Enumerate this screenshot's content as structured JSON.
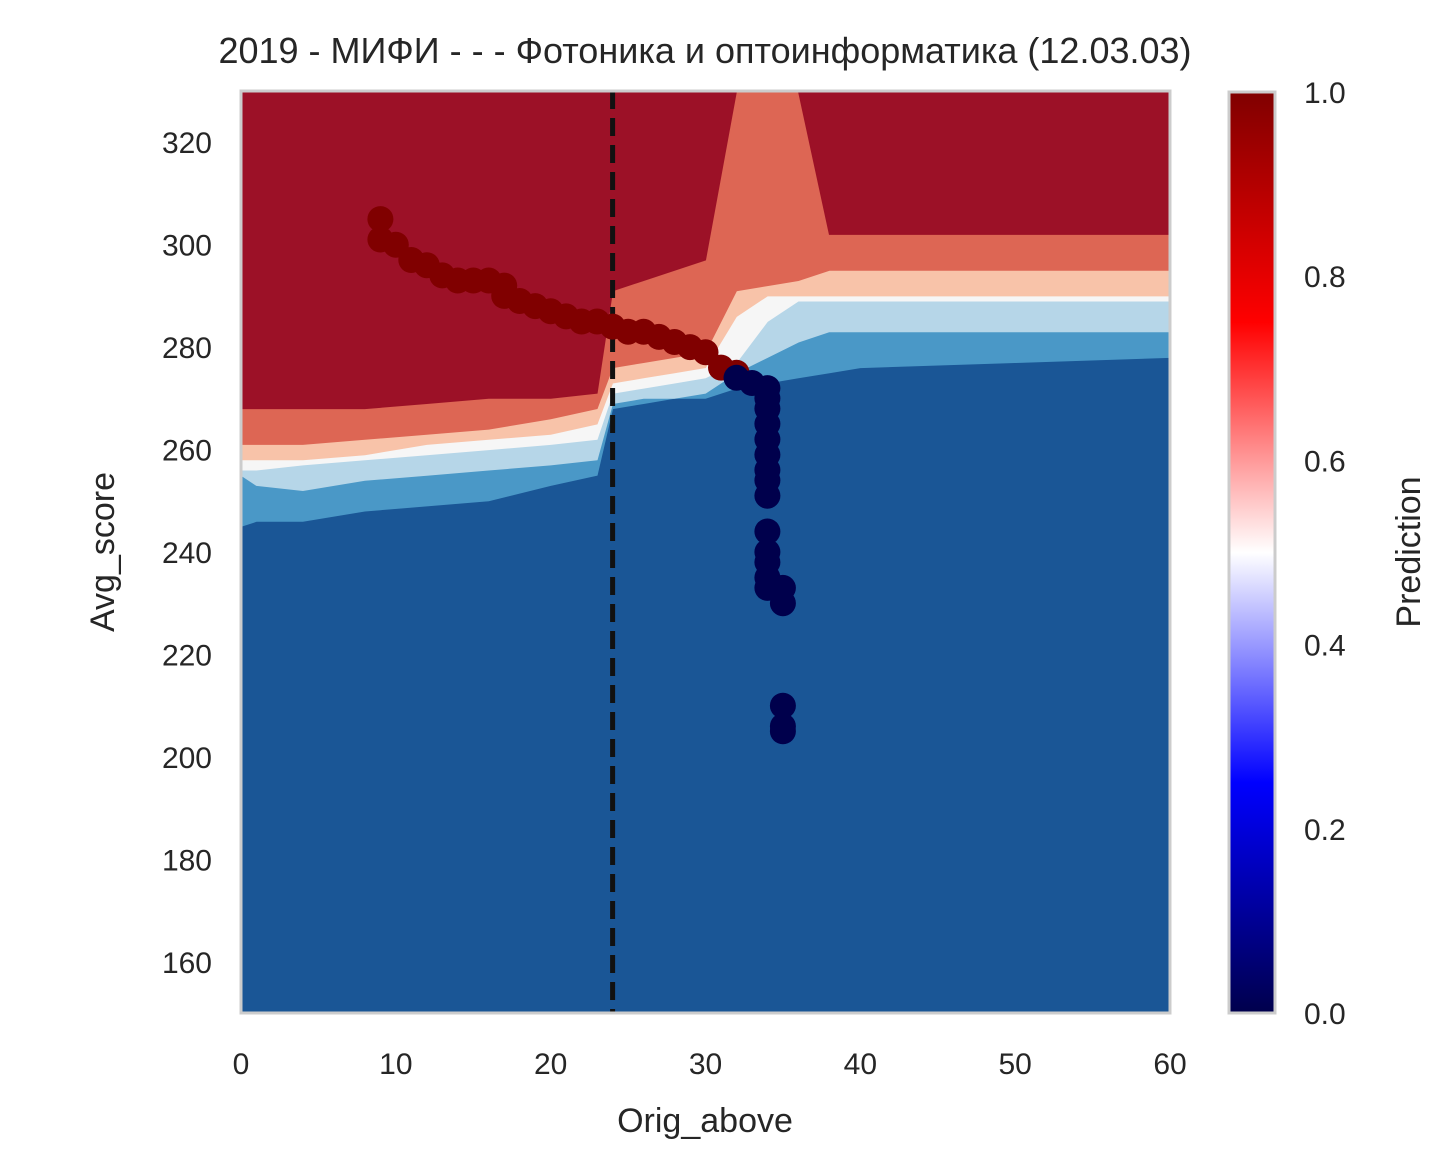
{
  "chart_data": {
    "type": "heatmap",
    "title": "2019 - МИФИ - - - Фотоника и оптоинформатика (12.03.03)",
    "xlabel": "Orig_above",
    "ylabel": "Avg_score",
    "xlim": [
      0,
      60
    ],
    "ylim": [
      150,
      330
    ],
    "xticks": [
      "0",
      "10",
      "20",
      "30",
      "40",
      "50",
      "60"
    ],
    "yticks": [
      "160",
      "180",
      "200",
      "220",
      "240",
      "260",
      "280",
      "300",
      "320"
    ],
    "grid": false,
    "threshold_line": {
      "orientation": "vertical",
      "x": 24,
      "style": "dashed",
      "color": "#111111"
    },
    "colorbar": {
      "label": "Prediction",
      "range": [
        0,
        1
      ],
      "ticks": [
        "0.0",
        "0.2",
        "0.4",
        "0.6",
        "0.8",
        "1.0"
      ],
      "colors": [
        "#00004c",
        "#0000ff",
        "#ffffff",
        "#ff0000",
        "#800000"
      ]
    },
    "contour_levels": [
      {
        "level": "0.0-0.2",
        "color": "#1a5696"
      },
      {
        "level": "0.2-0.3",
        "color": "#4a98c7"
      },
      {
        "level": "0.3-0.45",
        "color": "#b6d6e8"
      },
      {
        "level": "0.45-0.55",
        "color": "#f6f6f6"
      },
      {
        "level": "0.55-0.7",
        "color": "#f8c3a9"
      },
      {
        "level": "0.7-0.85",
        "color": "#dd6654"
      },
      {
        "level": "0.85-1.0",
        "color": "#9c1127"
      }
    ],
    "decision_boundaries": {
      "x": [
        0,
        1,
        4,
        8,
        12,
        16,
        20,
        23,
        24,
        26,
        28,
        30,
        32,
        34,
        36,
        38,
        40,
        50,
        60
      ],
      "b1": [
        245,
        246,
        246,
        248,
        249,
        250,
        253,
        255,
        268,
        269,
        270,
        270,
        272,
        273,
        274,
        275,
        276,
        277,
        278
      ],
      "b2": [
        255,
        253,
        252,
        254,
        255,
        256,
        257,
        258,
        269,
        270,
        270,
        271,
        275,
        278,
        281,
        283,
        283,
        283,
        283
      ],
      "b3": [
        256,
        256,
        257,
        258,
        259,
        260,
        261,
        262,
        271,
        272,
        273,
        274,
        277,
        285,
        289,
        289,
        289,
        289,
        289
      ],
      "b4": [
        258,
        258,
        258,
        259,
        261,
        262,
        263,
        265,
        273,
        274,
        275,
        276,
        286,
        290,
        290,
        290,
        290,
        290,
        290
      ],
      "b5": [
        261,
        261,
        261,
        262,
        263,
        264,
        266,
        268,
        276,
        277,
        278,
        279,
        291,
        292,
        293,
        295,
        295,
        295,
        295
      ],
      "b6": [
        268,
        268,
        268,
        268,
        269,
        270,
        270,
        271,
        291,
        293,
        295,
        297,
        330,
        330,
        330,
        302,
        302,
        302,
        302
      ]
    },
    "series": [
      {
        "name": "",
        "color": "#800000",
        "x": [
          9,
          9,
          10,
          11,
          12,
          13,
          14,
          15,
          16,
          17,
          17,
          18,
          19,
          20,
          21,
          22,
          23,
          24,
          25,
          26,
          27,
          28,
          29,
          30,
          31,
          32
        ],
        "y": [
          305,
          301,
          300,
          297,
          296,
          294,
          293,
          293,
          293,
          292,
          290,
          289,
          288,
          287,
          286,
          285,
          285,
          284,
          283,
          283,
          282,
          281,
          280,
          279,
          276,
          275
        ]
      },
      {
        "name": "",
        "color": "#00004c",
        "x": [
          32,
          33,
          34,
          34,
          34,
          34,
          34,
          34,
          34,
          34,
          34,
          34,
          34,
          34,
          34,
          34,
          35,
          35,
          35,
          35,
          35
        ],
        "y": [
          274,
          273,
          272,
          270,
          268,
          265,
          262,
          259,
          256,
          254,
          251,
          244,
          240,
          238,
          235,
          233,
          233,
          230,
          210,
          206,
          205
        ]
      }
    ]
  }
}
